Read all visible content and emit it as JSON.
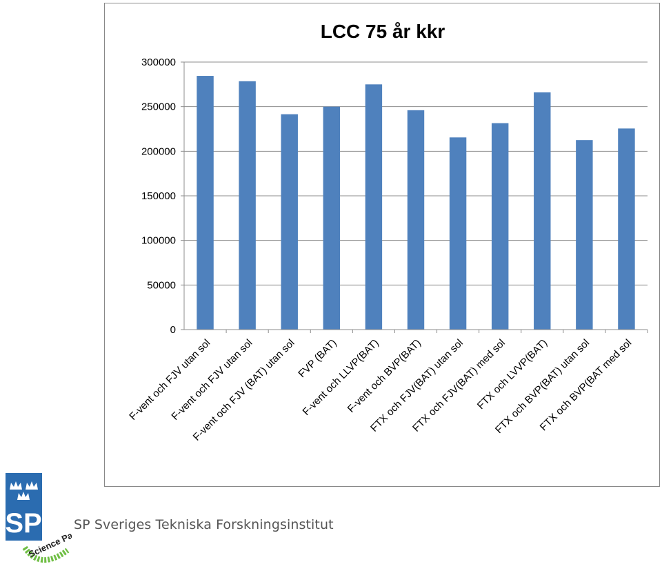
{
  "chart_data": {
    "type": "bar",
    "title": "LCC 75 år kkr",
    "xlabel": "",
    "ylabel": "",
    "ylim": [
      0,
      300000
    ],
    "yticks": [
      "0",
      "50000",
      "100000",
      "150000",
      "200000",
      "250000",
      "300000"
    ],
    "grid": true,
    "legend": "none",
    "bar_color": "#4F81BD",
    "categories": [
      "F-vent och FJV utan sol",
      "F-vent och FJV utan sol",
      "F-vent och FJV (BAT) utan sol",
      "FVP (BAT)",
      "F-vent och LLVP(BAT)",
      "F-vent och BVP(BAT)",
      "FTX och FJV(BAT) utan sol",
      "FTX och FJV(BAT) med sol",
      "FTX och LVVP(BAT)",
      "FTX och BVP(BAT) utan sol",
      "FTX och BVP(BAT med sol"
    ],
    "values": [
      284500,
      278500,
      241500,
      250000,
      275000,
      246000,
      215500,
      231500,
      266000,
      212500,
      225500
    ]
  },
  "logo": {
    "brand_text": "SP",
    "brand_color": "#2B6CB0",
    "badge_text": "Science Partner",
    "badge_color": "#6FBE44"
  },
  "footer": {
    "org_name": "SP Sveriges Tekniska Forskningsinstitut"
  }
}
